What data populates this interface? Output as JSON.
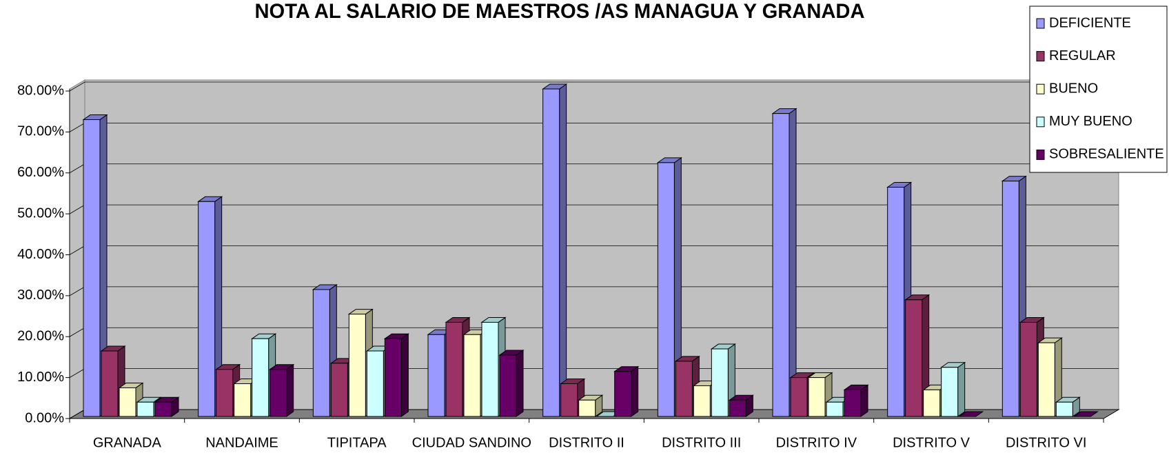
{
  "chart_data": {
    "type": "bar3d",
    "title": "NOTA AL SALARIO DE MAESTROS /AS MANAGUA Y GRANADA",
    "categories": [
      "GRANADA",
      "NANDAIME",
      "TIPITAPA",
      "CIUDAD SANDINO",
      "DISTRITO II",
      "DISTRITO III",
      "DISTRITO IV",
      "DISTRITO V",
      "DISTRITO VI"
    ],
    "series": [
      {
        "name": "DEFICIENTE",
        "color": "#9999ff",
        "values": [
          72.5,
          52.5,
          31,
          20,
          80,
          62,
          74,
          56,
          57.5
        ]
      },
      {
        "name": "REGULAR",
        "color": "#993366",
        "values": [
          16,
          11.5,
          13,
          23,
          8,
          13.5,
          9.5,
          28.5,
          23
        ]
      },
      {
        "name": "BUENO",
        "color": "#ffffcc",
        "values": [
          7,
          8,
          25,
          20,
          4,
          7.5,
          9.5,
          6.5,
          18
        ]
      },
      {
        "name": "MUY BUENO",
        "color": "#ccffff",
        "values": [
          3.5,
          19,
          16,
          23,
          0,
          16.5,
          3.5,
          12,
          3.5
        ]
      },
      {
        "name": "SOBRESALIENTE",
        "color": "#660066",
        "values": [
          3.5,
          11.5,
          19,
          15,
          11,
          4,
          6.5,
          0,
          0
        ]
      }
    ],
    "ylim": [
      0,
      80
    ],
    "yticks": [
      {
        "value": 0,
        "label": "0.00%"
      },
      {
        "value": 10,
        "label": "10.00%"
      },
      {
        "value": 20,
        "label": "20.00%"
      },
      {
        "value": 30,
        "label": "30.00%"
      },
      {
        "value": 40,
        "label": "40.00%"
      },
      {
        "value": 50,
        "label": "50.00%"
      },
      {
        "value": 60,
        "label": "60.00%"
      },
      {
        "value": 70,
        "label": "70.00%"
      },
      {
        "value": 80,
        "label": "80.00%"
      }
    ],
    "grid": true,
    "legend": "top-right"
  }
}
